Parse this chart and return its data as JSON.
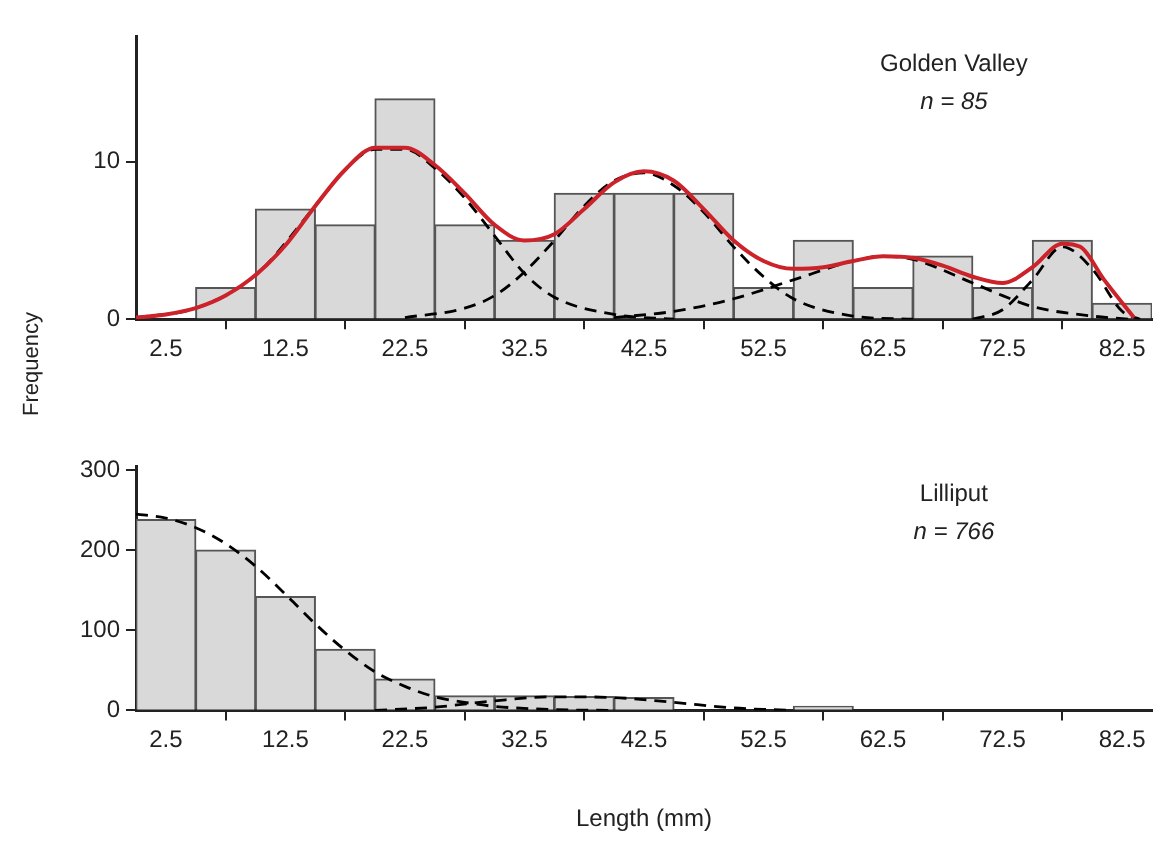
{
  "chart_data": [
    {
      "type": "histogram",
      "bins": [
        0,
        5,
        10,
        15,
        20,
        25,
        30,
        35,
        40,
        45,
        50,
        55,
        60,
        65,
        70,
        75,
        80,
        85
      ],
      "values": [
        0,
        2,
        7,
        6,
        14,
        6,
        5,
        8,
        8,
        8,
        2,
        5,
        2,
        4,
        2,
        5,
        1
      ],
      "color": "#d9d9d9",
      "series": [
        {
          "type": "line",
          "color": "#cc2229",
          "line_style": "solid",
          "x": [
            0,
            2.5,
            5,
            7.5,
            10,
            12.5,
            15,
            17.5,
            20,
            22.5,
            25,
            27.5,
            30,
            32.5,
            35,
            37.5,
            40,
            42.5,
            45,
            47.5,
            50,
            52.5,
            55,
            57.5,
            60,
            62.5,
            65,
            67.5,
            70,
            72.5,
            75,
            77.5,
            79,
            81,
            83.5
          ],
          "values": [
            0.1,
            0.3,
            0.7,
            1.5,
            2.8,
            4.7,
            7.2,
            9.5,
            10.9,
            10.9,
            9.8,
            8.0,
            6.0,
            5.0,
            5.4,
            7.0,
            8.7,
            9.4,
            8.8,
            7.0,
            5.0,
            3.7,
            3.2,
            3.3,
            3.7,
            4.0,
            3.9,
            3.4,
            2.7,
            2.3,
            3.3,
            4.8,
            4.6,
            2.5,
            0.1
          ]
        },
        {
          "type": "line",
          "color": "#000000",
          "line_style": "dashed",
          "x": [
            0,
            5,
            10,
            15,
            17.5,
            20,
            22.5,
            25,
            27.5,
            30,
            32.5,
            35,
            40,
            45
          ],
          "values": [
            0.1,
            0.7,
            2.8,
            7.2,
            9.5,
            10.8,
            10.8,
            9.6,
            7.7,
            5.3,
            2.9,
            1.4,
            0.3,
            0
          ]
        },
        {
          "type": "line",
          "color": "#000000",
          "line_style": "dashed",
          "x": [
            22.5,
            27.5,
            30,
            32.5,
            35,
            37.5,
            40,
            42.5,
            45,
            47.5,
            50,
            52.5,
            55,
            60,
            65
          ],
          "values": [
            0.1,
            0.7,
            1.5,
            3.0,
            5.0,
            7.2,
            8.8,
            9.3,
            8.5,
            6.8,
            4.6,
            2.7,
            1.3,
            0.2,
            0
          ]
        },
        {
          "type": "line",
          "color": "#000000",
          "line_style": "dashed",
          "x": [
            40,
            45,
            50,
            55,
            60,
            62.5,
            65,
            70,
            72.5,
            75,
            80,
            83
          ],
          "values": [
            0.1,
            0.5,
            1.3,
            2.5,
            3.7,
            4.0,
            3.8,
            2.3,
            1.5,
            0.8,
            0.2,
            0
          ]
        },
        {
          "type": "line",
          "color": "#000000",
          "line_style": "dashed",
          "x": [
            70,
            72.5,
            75,
            77.5,
            80,
            82.5,
            84
          ],
          "values": [
            0,
            0.6,
            2.5,
            4.6,
            3.2,
            0.5,
            0
          ]
        }
      ],
      "xlim": [
        0,
        85
      ],
      "xticks": [
        2.5,
        12.5,
        22.5,
        32.5,
        42.5,
        52.5,
        62.5,
        72.5,
        82.5
      ],
      "ylim": [
        0,
        18
      ],
      "yticks": [
        0,
        10
      ],
      "ylabel": "Frequency",
      "annotations": [
        "Golden Valley",
        "n = 85"
      ],
      "grid": false,
      "legend": false,
      "marker": "none"
    },
    {
      "type": "histogram",
      "bins": [
        0,
        5,
        10,
        15,
        20,
        25,
        30,
        35,
        40,
        45,
        50,
        55,
        60,
        65,
        70,
        75,
        80,
        85
      ],
      "values": [
        238,
        200,
        142,
        76,
        39,
        18,
        18,
        17,
        16,
        null,
        0,
        5,
        0,
        0,
        0,
        0,
        0
      ],
      "color": "#d9d9d9",
      "series": [
        {
          "type": "line",
          "color": "#000000",
          "line_style": "dashed",
          "x": [
            0,
            2.5,
            5,
            7.5,
            10,
            12.5,
            15,
            17.5,
            20,
            22.5,
            25,
            27.5,
            30,
            35,
            40
          ],
          "values": [
            245,
            240,
            228,
            208,
            180,
            145,
            108,
            75,
            48,
            30,
            17,
            10,
            5,
            1,
            0
          ]
        },
        {
          "type": "line",
          "color": "#000000",
          "line_style": "dashed",
          "x": [
            20,
            25,
            30,
            35,
            40,
            45,
            50,
            55
          ],
          "values": [
            0,
            4,
            12,
            17,
            16,
            10,
            3,
            0
          ]
        }
      ],
      "xlim": [
        0,
        85
      ],
      "xticks": [
        2.5,
        12.5,
        22.5,
        32.5,
        42.5,
        52.5,
        62.5,
        72.5,
        82.5
      ],
      "ylim": [
        0,
        305
      ],
      "yticks": [
        0,
        100,
        200,
        300
      ],
      "xlabel": "Length (mm)",
      "annotations": [
        "Lilliput",
        "n = 766"
      ],
      "grid": false,
      "legend": false,
      "marker": "none"
    }
  ]
}
